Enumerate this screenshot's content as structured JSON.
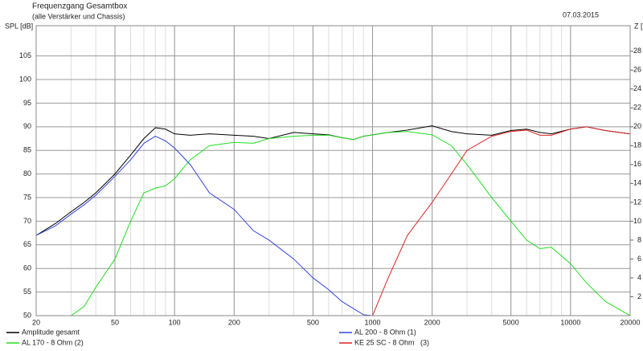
{
  "chart_data": {
    "type": "line",
    "title": "Frequenzgang Gesamtbox",
    "subtitle": "(alle Verstärker und Chassis)",
    "date": "07.03.2015",
    "y_label": "SPL [dB]",
    "y2_label": "Z [Ω]",
    "x": [
      20,
      25,
      30,
      35,
      40,
      50,
      60,
      70,
      80,
      90,
      100,
      120,
      150,
      200,
      250,
      300,
      400,
      500,
      600,
      700,
      800,
      900,
      1000,
      1200,
      1500,
      2000,
      2500,
      3000,
      4000,
      5000,
      6000,
      7000,
      8000,
      10000,
      12000,
      15000,
      20000
    ],
    "series": [
      {
        "name": "Amplitude gesamt",
        "color": "#000000",
        "values": [
          67,
          69.5,
          72,
          74,
          76,
          80,
          84,
          87.5,
          89.8,
          89.5,
          88.5,
          88.2,
          88.5,
          88.2,
          88,
          87.5,
          88.8,
          88.5,
          88.3,
          87.7,
          87.3,
          88,
          88.3,
          88.8,
          89.3,
          90.2,
          89,
          88.5,
          88.2,
          89.2,
          89.5,
          88.8,
          88.5,
          89.5,
          90,
          89.2,
          88.5
        ]
      },
      {
        "name": "AL 170 - 8 Ohm (2)",
        "color": "#22dd22",
        "values": [
          50,
          50,
          50,
          52,
          56,
          62,
          70,
          76,
          77,
          77.5,
          79,
          83,
          86,
          86.7,
          86.5,
          87.5,
          88,
          88.2,
          88.2,
          87.7,
          87.3,
          88,
          88.3,
          88.8,
          89,
          88.3,
          86,
          82,
          75,
          70,
          66,
          64.2,
          64.5,
          61,
          57,
          53,
          50
        ]
      },
      {
        "name": "AL 200 - 8 Ohm (1)",
        "color": "#3344dd",
        "values": [
          67,
          69,
          71.5,
          73.5,
          75.5,
          79.5,
          83,
          86.5,
          88,
          87,
          85.5,
          82,
          76,
          72.5,
          68,
          66,
          62,
          58,
          55.5,
          53,
          51.5,
          50.2,
          50,
          null,
          null,
          null,
          null,
          null,
          null,
          null,
          null,
          null,
          null,
          null,
          null,
          null,
          null
        ]
      },
      {
        "name": "KE 25 SC - 8 Ohm   (3)",
        "color": "#dd2222",
        "values": [
          null,
          null,
          null,
          null,
          null,
          null,
          null,
          null,
          null,
          null,
          null,
          null,
          null,
          null,
          null,
          null,
          null,
          null,
          null,
          null,
          null,
          null,
          50,
          58,
          67,
          74,
          80,
          85,
          88,
          89,
          89.3,
          88.2,
          88.2,
          89.5,
          90,
          89.2,
          88.5
        ]
      }
    ],
    "xlog": true,
    "xlim": [
      20,
      20000
    ],
    "xticks": [
      20,
      50,
      100,
      200,
      500,
      1000,
      2000,
      5000,
      10000,
      20000
    ],
    "ylim": [
      50,
      111.4
    ],
    "yticks": [
      50,
      55,
      60,
      65,
      70,
      75,
      80,
      85,
      90,
      95,
      100,
      105
    ],
    "y2lim": [
      0,
      30.7
    ],
    "y2ticks": [
      2,
      4,
      6,
      8,
      10,
      12,
      14,
      16,
      18,
      20,
      22,
      24,
      26,
      28
    ],
    "grid": true
  }
}
